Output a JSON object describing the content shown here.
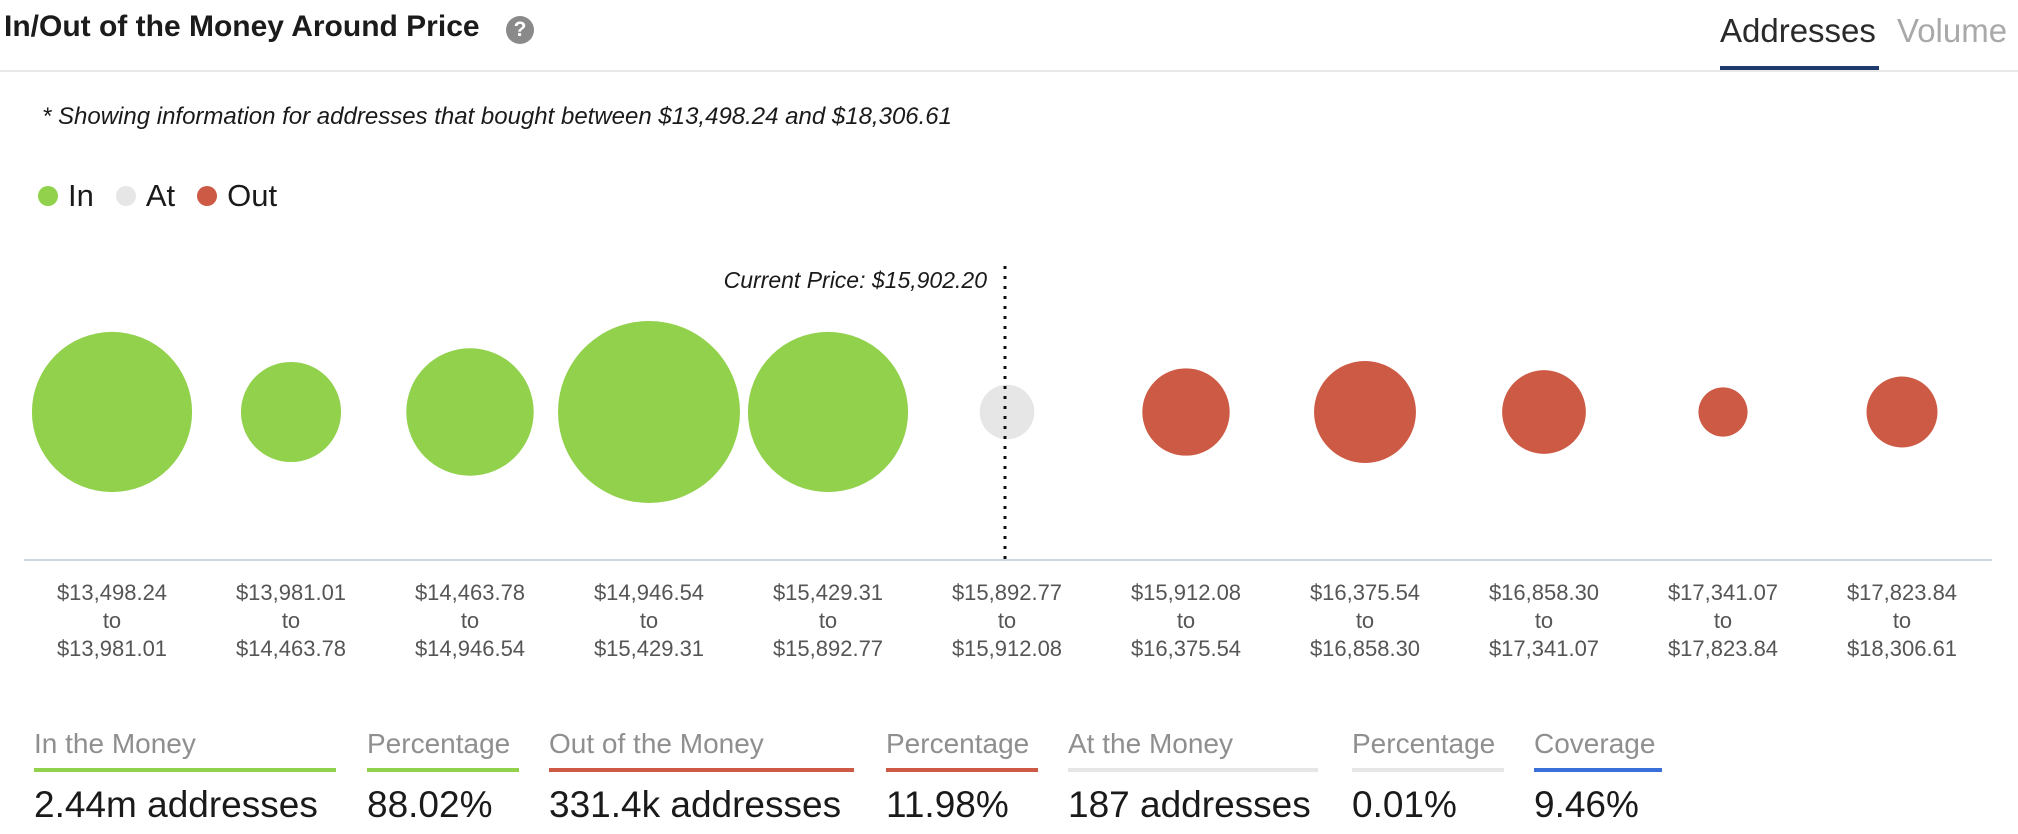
{
  "header": {
    "title": "In/Out of the Money Around Price",
    "help_icon": "question-circle-icon",
    "tabs": [
      {
        "label": "Addresses",
        "active": true
      },
      {
        "label": "Volume",
        "active": false
      }
    ]
  },
  "note": "* Showing information for addresses that bought between $13,498.24 and $18,306.61",
  "legend": [
    {
      "label": "In",
      "color": "#91d14b"
    },
    {
      "label": "At",
      "color": "#e6e6e6"
    },
    {
      "label": "Out",
      "color": "#cc5a44"
    }
  ],
  "chart_data": {
    "type": "scatter",
    "title": "In/Out of the Money Around Price",
    "current_price_label": "Current Price: $15,902.20",
    "current_price_bucket_index": 5,
    "colors": {
      "In": "#91d14b",
      "At": "#e6e6e6",
      "Out": "#cc5a44"
    },
    "buckets": [
      {
        "from": "$13,498.24",
        "to": "$13,981.01",
        "status": "In",
        "relative_size": 0.88
      },
      {
        "from": "$13,981.01",
        "to": "$14,463.78",
        "status": "In",
        "relative_size": 0.55
      },
      {
        "from": "$14,463.78",
        "to": "$14,946.54",
        "status": "In",
        "relative_size": 0.7
      },
      {
        "from": "$14,946.54",
        "to": "$15,429.31",
        "status": "In",
        "relative_size": 1.0
      },
      {
        "from": "$15,429.31",
        "to": "$15,892.77",
        "status": "In",
        "relative_size": 0.88
      },
      {
        "from": "$15,892.77",
        "to": "$15,912.08",
        "status": "At",
        "relative_size": 0.3
      },
      {
        "from": "$15,912.08",
        "to": "$16,375.54",
        "status": "Out",
        "relative_size": 0.48
      },
      {
        "from": "$16,375.54",
        "to": "$16,858.30",
        "status": "Out",
        "relative_size": 0.56
      },
      {
        "from": "$16,858.30",
        "to": "$17,341.07",
        "status": "Out",
        "relative_size": 0.46
      },
      {
        "from": "$17,341.07",
        "to": "$17,823.84",
        "status": "Out",
        "relative_size": 0.27
      },
      {
        "from": "$17,823.84",
        "to": "$18,306.61",
        "status": "Out",
        "relative_size": 0.39
      }
    ]
  },
  "stats": [
    {
      "label": "In the Money",
      "value": "2.44m addresses",
      "color": "#91d14b"
    },
    {
      "label": "Percentage",
      "value": "88.02%",
      "color": "#91d14b"
    },
    {
      "label": "Out of the Money",
      "value": "331.4k addresses",
      "color": "#cc5a44"
    },
    {
      "label": "Percentage",
      "value": "11.98%",
      "color": "#cc5a44"
    },
    {
      "label": "At the Money",
      "value": "187 addresses",
      "color": "#e6e6e6"
    },
    {
      "label": "Percentage",
      "value": "0.01%",
      "color": "#e6e6e6"
    },
    {
      "label": "Coverage",
      "value": "9.46%",
      "color": "#3a6fd8"
    }
  ]
}
